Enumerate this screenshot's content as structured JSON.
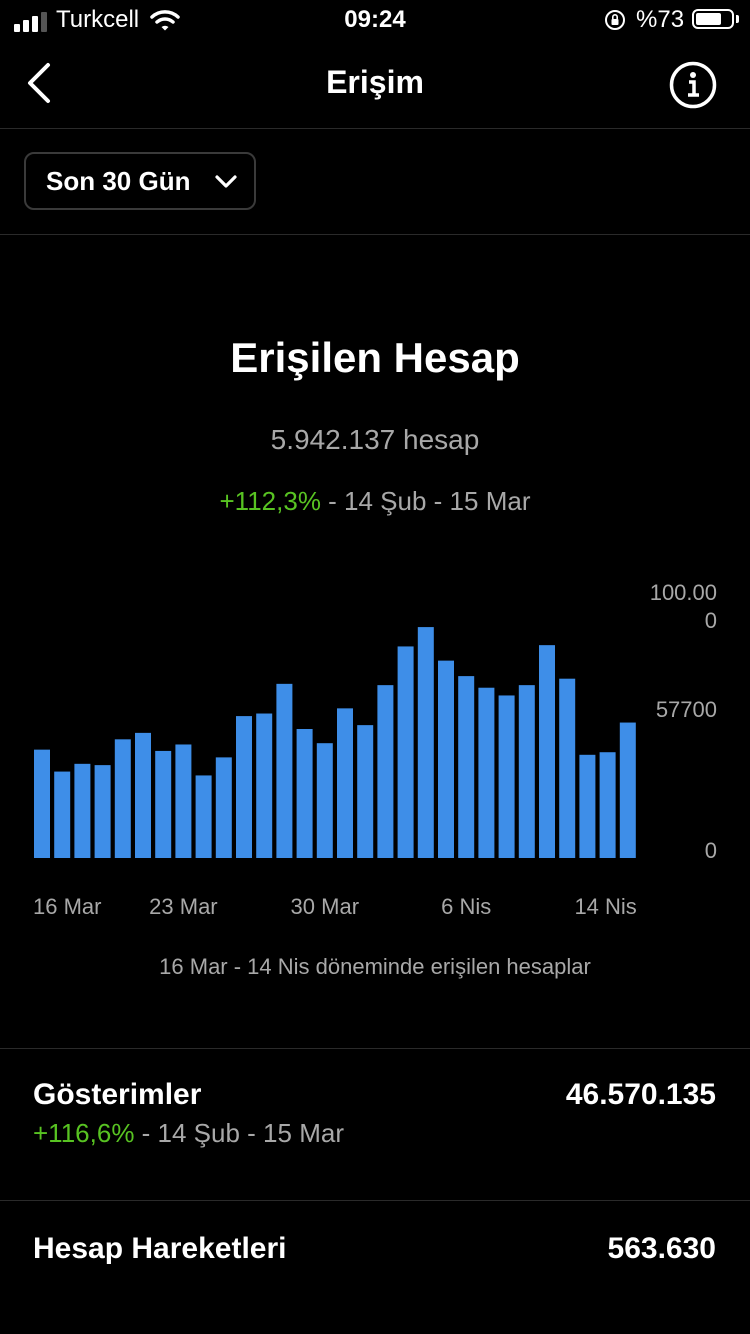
{
  "status_bar": {
    "carrier": "Turkcell",
    "time": "09:24",
    "battery": "%73",
    "battery_level": 0.73
  },
  "nav": {
    "title": "Erişim",
    "back_icon": "chevron-left-icon",
    "info_icon": "info-icon"
  },
  "filter": {
    "label": "Son 30 Gün",
    "icon": "chevron-down-icon"
  },
  "reach": {
    "title": "Erişilen Hesap",
    "value": "5.942.137 hesap",
    "change": "+112,3%",
    "period": " - 14 Şub - 15 Mar",
    "caption": "16 Mar - 14 Nis döneminde erişilen hesaplar"
  },
  "chart_data": {
    "type": "bar",
    "color": "#3e8ee8",
    "ylim": [
      0,
      100000
    ],
    "y_tick_labels": [
      "100.00\n0",
      "57700",
      "0"
    ],
    "y_tick_values": [
      100000,
      57700,
      0
    ],
    "x_tick_labels": [
      "16 Mar",
      "23 Mar",
      "30 Mar",
      "6 Nis",
      "14 Nis"
    ],
    "x_tick_index": [
      1,
      8,
      15,
      22,
      29
    ],
    "values": [
      42000,
      33500,
      36500,
      36000,
      46000,
      48500,
      41500,
      44000,
      32000,
      39000,
      55000,
      56000,
      67500,
      50000,
      44500,
      58000,
      51500,
      67000,
      82000,
      89500,
      76500,
      70500,
      66000,
      63000,
      67000,
      82500,
      69500,
      40000,
      41000,
      52500
    ]
  },
  "stats": [
    {
      "label": "Gösterimler",
      "value": "46.570.135",
      "change": "+116,6%",
      "period": " - 14 Şub - 15 Mar"
    },
    {
      "label": "Hesap Hareketleri",
      "value": "563.630"
    }
  ]
}
